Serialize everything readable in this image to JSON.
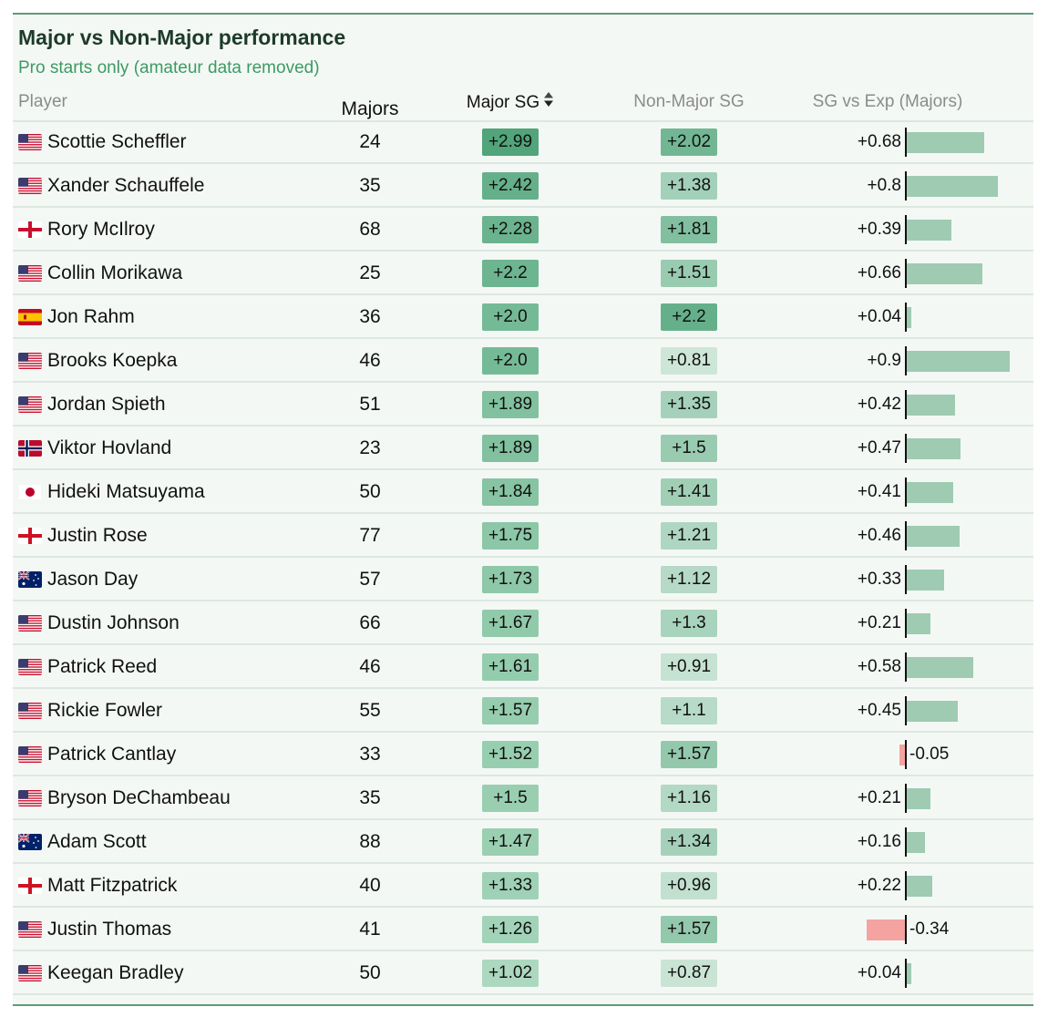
{
  "title": "Major vs Non-Major performance",
  "subtitle": "Pro starts only (amateur data removed)",
  "columns": {
    "player": "Player",
    "majors": "Majors",
    "major_sg": "Major SG",
    "non_major_sg": "Non-Major SG",
    "sg_vs_exp": "SG vs Exp (Majors)"
  },
  "sort": {
    "column": "major_sg",
    "icon": "sort-updown-icon"
  },
  "colors": {
    "accent_green": "#3d9a64",
    "title": "#1d3b2a",
    "positive_bar": "#9ecbb2",
    "negative_bar": "#f4a3a0",
    "border": "#5f9a78"
  },
  "rows": [
    {
      "flag": "usa",
      "player": "Scottie Scheffler",
      "majors": "24",
      "major_sg": "+2.99",
      "non_major_sg": "+2.02",
      "sg_vs_exp": "+0.68"
    },
    {
      "flag": "usa",
      "player": "Xander Schauffele",
      "majors": "35",
      "major_sg": "+2.42",
      "non_major_sg": "+1.38",
      "sg_vs_exp": "+0.8"
    },
    {
      "flag": "northern-ireland",
      "player": "Rory McIlroy",
      "majors": "68",
      "major_sg": "+2.28",
      "non_major_sg": "+1.81",
      "sg_vs_exp": "+0.39"
    },
    {
      "flag": "usa",
      "player": "Collin Morikawa",
      "majors": "25",
      "major_sg": "+2.2",
      "non_major_sg": "+1.51",
      "sg_vs_exp": "+0.66"
    },
    {
      "flag": "spain",
      "player": "Jon Rahm",
      "majors": "36",
      "major_sg": "+2.0",
      "non_major_sg": "+2.2",
      "sg_vs_exp": "+0.04"
    },
    {
      "flag": "usa",
      "player": "Brooks Koepka",
      "majors": "46",
      "major_sg": "+2.0",
      "non_major_sg": "+0.81",
      "sg_vs_exp": "+0.9"
    },
    {
      "flag": "usa",
      "player": "Jordan Spieth",
      "majors": "51",
      "major_sg": "+1.89",
      "non_major_sg": "+1.35",
      "sg_vs_exp": "+0.42"
    },
    {
      "flag": "norway",
      "player": "Viktor Hovland",
      "majors": "23",
      "major_sg": "+1.89",
      "non_major_sg": "+1.5",
      "sg_vs_exp": "+0.47"
    },
    {
      "flag": "japan",
      "player": "Hideki Matsuyama",
      "majors": "50",
      "major_sg": "+1.84",
      "non_major_sg": "+1.41",
      "sg_vs_exp": "+0.41"
    },
    {
      "flag": "england",
      "player": "Justin Rose",
      "majors": "77",
      "major_sg": "+1.75",
      "non_major_sg": "+1.21",
      "sg_vs_exp": "+0.46"
    },
    {
      "flag": "australia",
      "player": "Jason Day",
      "majors": "57",
      "major_sg": "+1.73",
      "non_major_sg": "+1.12",
      "sg_vs_exp": "+0.33"
    },
    {
      "flag": "usa",
      "player": "Dustin Johnson",
      "majors": "66",
      "major_sg": "+1.67",
      "non_major_sg": "+1.3",
      "sg_vs_exp": "+0.21"
    },
    {
      "flag": "usa",
      "player": "Patrick Reed",
      "majors": "46",
      "major_sg": "+1.61",
      "non_major_sg": "+0.91",
      "sg_vs_exp": "+0.58"
    },
    {
      "flag": "usa",
      "player": "Rickie Fowler",
      "majors": "55",
      "major_sg": "+1.57",
      "non_major_sg": "+1.1",
      "sg_vs_exp": "+0.45"
    },
    {
      "flag": "usa",
      "player": "Patrick Cantlay",
      "majors": "33",
      "major_sg": "+1.52",
      "non_major_sg": "+1.57",
      "sg_vs_exp": "-0.05"
    },
    {
      "flag": "usa",
      "player": "Bryson DeChambeau",
      "majors": "35",
      "major_sg": "+1.5",
      "non_major_sg": "+1.16",
      "sg_vs_exp": "+0.21"
    },
    {
      "flag": "australia",
      "player": "Adam Scott",
      "majors": "88",
      "major_sg": "+1.47",
      "non_major_sg": "+1.34",
      "sg_vs_exp": "+0.16"
    },
    {
      "flag": "england",
      "player": "Matt Fitzpatrick",
      "majors": "40",
      "major_sg": "+1.33",
      "non_major_sg": "+0.96",
      "sg_vs_exp": "+0.22"
    },
    {
      "flag": "usa",
      "player": "Justin Thomas",
      "majors": "41",
      "major_sg": "+1.26",
      "non_major_sg": "+1.57",
      "sg_vs_exp": "-0.34"
    },
    {
      "flag": "usa",
      "player": "Keegan Bradley",
      "majors": "50",
      "major_sg": "+1.02",
      "non_major_sg": "+0.87",
      "sg_vs_exp": "+0.04"
    }
  ]
}
